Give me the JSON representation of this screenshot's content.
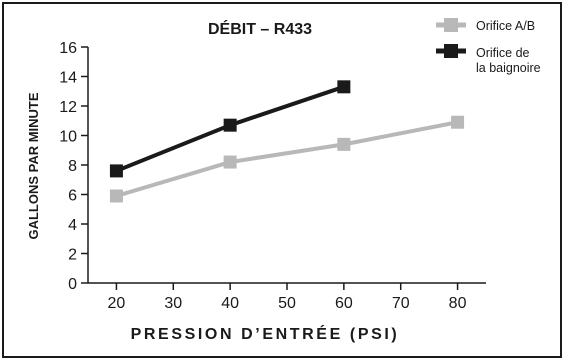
{
  "chart_data": {
    "type": "line",
    "title": "DÉBIT – R433",
    "xlabel": "PRESSION D’ENTRÉE (PSI)",
    "ylabel": "GALLONS PAR MINUTE",
    "xlim": [
      15,
      85
    ],
    "ylim": [
      0,
      16
    ],
    "x_ticks": [
      20,
      30,
      40,
      50,
      60,
      70,
      80
    ],
    "y_ticks": [
      0,
      2,
      4,
      6,
      8,
      10,
      12,
      14,
      16
    ],
    "grid": false,
    "legend_position": "top-right",
    "series": [
      {
        "name": "Orifice A/B",
        "color": "#b8b8b8",
        "x": [
          20,
          40,
          60,
          80
        ],
        "y": [
          5.9,
          8.2,
          9.4,
          10.9
        ]
      },
      {
        "name": "Orifice de la baignoire",
        "name_lines": [
          "Orifice de",
          "la baignoire"
        ],
        "color": "#1a1a1a",
        "x": [
          20,
          40,
          60
        ],
        "y": [
          7.6,
          10.7,
          13.3
        ]
      }
    ]
  }
}
